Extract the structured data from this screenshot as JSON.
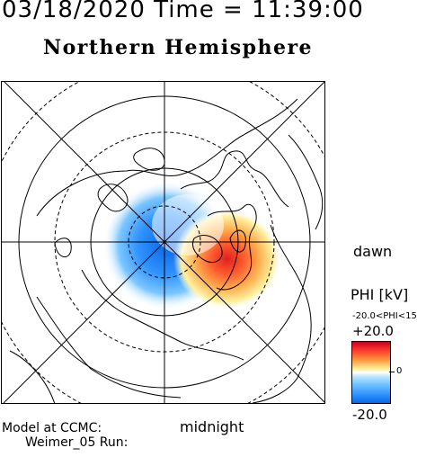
{
  "header": {
    "timestamp": "03/18/2020 Time = 11:39:00"
  },
  "title": "Northern Hemisphere",
  "labels": {
    "dawn": "dawn",
    "midnight": "midnight"
  },
  "colorbar": {
    "quantity": "PHI [kV]",
    "range_text": "-20.0<PHI<15",
    "max": "+20.0",
    "zero": "0",
    "min": "-20.0",
    "colors": {
      "max": "#c8001e",
      "mid": "#ffffff",
      "min": "#0a66e6"
    }
  },
  "footer": {
    "model": "Model at CCMC:",
    "run": "Weimer_05 Run:"
  }
}
